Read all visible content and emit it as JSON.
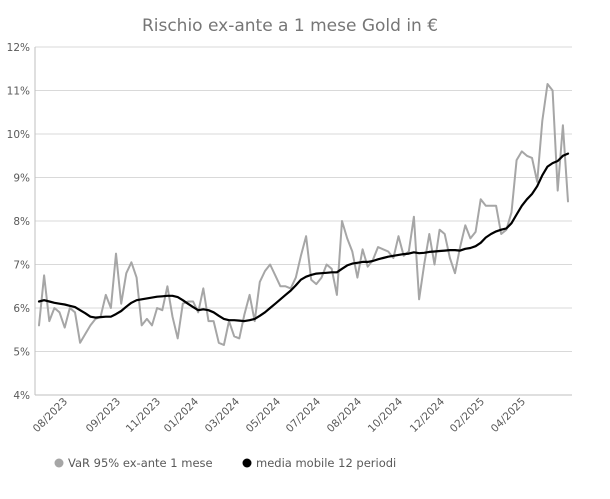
{
  "chart_data": {
    "type": "line",
    "title": "Rischio ex-ante a 1 mese Gold in €",
    "xlabel": "",
    "ylabel": "",
    "ylim": [
      4,
      12
    ],
    "y_ticks": [
      "4%",
      "5%",
      "6%",
      "7%",
      "8%",
      "9%",
      "10%",
      "11%",
      "12%"
    ],
    "x_tick_labels": [
      "08/2023",
      "09/2023",
      "11/2023",
      "01/2024",
      "03/2024",
      "05/2024",
      "07/2024",
      "08/2024",
      "10/2024",
      "12/2024",
      "02/2025",
      "04/2025"
    ],
    "grid": true,
    "legend_position": "bottom",
    "colors": {
      "var": "#a6a6a6",
      "ma": "#000000",
      "grid": "#d9d9d9",
      "text": "#595959"
    },
    "series": [
      {
        "name": "VaR 95% ex-ante 1 mese",
        "values": [
          5.6,
          6.75,
          5.7,
          6.0,
          5.9,
          5.55,
          6.0,
          5.9,
          5.2,
          5.4,
          5.6,
          5.75,
          5.8,
          6.3,
          6.0,
          7.25,
          6.1,
          6.8,
          7.05,
          6.7,
          5.6,
          5.75,
          5.6,
          6.0,
          5.95,
          6.5,
          5.8,
          5.3,
          6.1,
          6.15,
          6.15,
          5.9,
          6.45,
          5.7,
          5.7,
          5.2,
          5.15,
          5.7,
          5.35,
          5.3,
          5.85,
          6.3,
          5.7,
          6.6,
          6.85,
          7.0,
          6.75,
          6.5,
          6.5,
          6.45,
          6.7,
          7.2,
          7.65,
          6.65,
          6.55,
          6.7,
          7.0,
          6.9,
          6.3,
          8.0,
          7.6,
          7.3,
          6.7,
          7.35,
          6.95,
          7.1,
          7.4,
          7.35,
          7.3,
          7.15,
          7.65,
          7.2,
          7.3,
          8.1,
          6.2,
          7.0,
          7.7,
          7.0,
          7.8,
          7.7,
          7.15,
          6.8,
          7.4,
          7.9,
          7.6,
          7.75,
          8.5,
          8.35,
          8.35,
          8.35,
          7.7,
          7.8,
          8.2,
          9.4,
          9.6,
          9.5,
          9.45,
          8.9,
          10.3,
          11.15,
          11.0,
          8.7,
          10.2,
          8.45
        ]
      },
      {
        "name": "media mobile 12 periodi",
        "values": [
          6.15,
          6.18,
          6.15,
          6.12,
          6.1,
          6.08,
          6.05,
          6.02,
          5.95,
          5.88,
          5.8,
          5.78,
          5.79,
          5.8,
          5.8,
          5.86,
          5.93,
          6.03,
          6.12,
          6.18,
          6.2,
          6.22,
          6.24,
          6.26,
          6.27,
          6.28,
          6.28,
          6.25,
          6.18,
          6.1,
          6.02,
          5.95,
          5.97,
          5.95,
          5.9,
          5.82,
          5.75,
          5.72,
          5.72,
          5.71,
          5.7,
          5.72,
          5.75,
          5.82,
          5.9,
          6.0,
          6.1,
          6.2,
          6.3,
          6.4,
          6.52,
          6.65,
          6.72,
          6.76,
          6.79,
          6.8,
          6.81,
          6.82,
          6.82,
          6.9,
          6.98,
          7.02,
          7.04,
          7.06,
          7.06,
          7.08,
          7.12,
          7.15,
          7.18,
          7.2,
          7.22,
          7.24,
          7.25,
          7.28,
          7.26,
          7.27,
          7.29,
          7.3,
          7.31,
          7.32,
          7.33,
          7.33,
          7.32,
          7.36,
          7.38,
          7.42,
          7.5,
          7.62,
          7.7,
          7.76,
          7.8,
          7.83,
          7.95,
          8.15,
          8.35,
          8.5,
          8.62,
          8.8,
          9.05,
          9.25,
          9.33,
          9.38,
          9.5,
          9.55
        ]
      }
    ]
  }
}
